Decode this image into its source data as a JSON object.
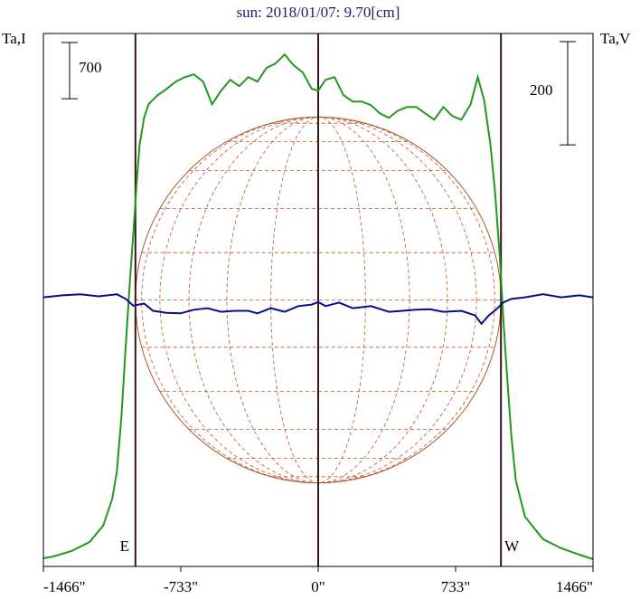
{
  "chart_data": {
    "type": "line",
    "title": "sun: 2018/01/07: 9.70[cm]",
    "xlim": [
      -1466,
      1466
    ],
    "xticks": [
      {
        "value": -1466,
        "label": "-1466\""
      },
      {
        "value": -733,
        "label": "-733\""
      },
      {
        "value": 0,
        "label": "0\""
      },
      {
        "value": 733,
        "label": "733\""
      },
      {
        "value": 1466,
        "label": "1466\""
      }
    ],
    "ylim": [
      0,
      6640
    ],
    "y2lim": [
      -516,
      516
    ],
    "limbs": [
      {
        "x": -975,
        "label": "E"
      },
      {
        "x": 975,
        "label": "W"
      }
    ],
    "series": [
      {
        "name": "Ta,I",
        "color": "#1f9a1f",
        "scale_bar": 700,
        "x": [
          -1466,
          -1413,
          -1316,
          -1219,
          -1147,
          -1098,
          -1074,
          -1050,
          -1026,
          -1001,
          -987,
          -968,
          -953,
          -929,
          -905,
          -856,
          -808,
          -760,
          -711,
          -663,
          -614,
          -566,
          -518,
          -469,
          -421,
          -373,
          -324,
          -276,
          -227,
          -179,
          -131,
          -82,
          -34,
          0,
          39,
          87,
          135,
          184,
          232,
          281,
          329,
          377,
          426,
          474,
          523,
          571,
          619,
          668,
          716,
          764,
          813,
          851,
          885,
          919,
          943,
          968,
          987,
          1006,
          1030,
          1054,
          1103,
          1200,
          1297,
          1393,
          1466
        ],
        "values": [
          102,
          124,
          192,
          305,
          508,
          847,
          1185,
          1863,
          2766,
          3669,
          4121,
          4798,
          5250,
          5589,
          5758,
          5871,
          5950,
          6040,
          6097,
          6130,
          6040,
          5758,
          5927,
          6063,
          5984,
          6097,
          6040,
          6210,
          6266,
          6379,
          6243,
          6153,
          5950,
          5927,
          6063,
          6097,
          5871,
          5792,
          5792,
          5747,
          5645,
          5589,
          5679,
          5724,
          5724,
          5645,
          5566,
          5724,
          5611,
          5566,
          5758,
          6097,
          5814,
          5250,
          4685,
          3895,
          3105,
          2427,
          1637,
          1073,
          621,
          339,
          226,
          147,
          90
        ]
      },
      {
        "name": "Ta,V",
        "color": "#0c0c8a",
        "axis": "y2",
        "scale_bar": 200,
        "x": [
          -1466,
          -1364,
          -1268,
          -1171,
          -1074,
          -1026,
          -987,
          -929,
          -881,
          -808,
          -735,
          -663,
          -590,
          -518,
          -445,
          -373,
          -324,
          -252,
          -179,
          -106,
          -34,
          0,
          39,
          111,
          184,
          281,
          377,
          450,
          523,
          595,
          668,
          764,
          837,
          871,
          910,
          948,
          987,
          1030,
          1103,
          1200,
          1297,
          1393,
          1466
        ],
        "values": [
          5,
          9,
          11,
          7,
          11,
          2,
          -11,
          -7,
          -21,
          -25,
          -26,
          -19,
          -16,
          -23,
          -21,
          -21,
          -26,
          -16,
          -23,
          -12,
          -9,
          -4,
          -12,
          -5,
          -16,
          -12,
          -23,
          -21,
          -19,
          -18,
          -23,
          -21,
          -30,
          -46,
          -30,
          -19,
          -5,
          2,
          5,
          11,
          5,
          9,
          5
        ]
      }
    ]
  }
}
